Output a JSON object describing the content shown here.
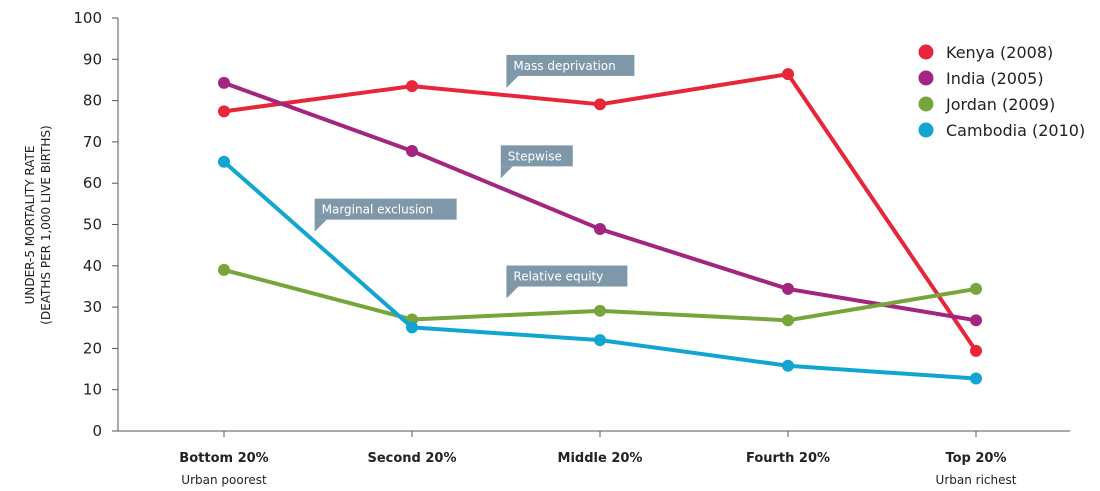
{
  "chart_data": {
    "type": "line",
    "categories": [
      "Bottom 20%",
      "Second 20%",
      "Middle 20%",
      "Fourth 20%",
      "Top 20%"
    ],
    "category_sublabels": [
      "Urban poorest",
      "",
      "",
      "",
      "Urban richest"
    ],
    "ylabel": [
      "UNDER-5 MORTALITY RATE",
      "(DEATHS PER 1,000 LIVE BIRTHS)"
    ],
    "xlabel": "",
    "ylim": [
      0,
      100
    ],
    "yticks": [
      0,
      10,
      20,
      30,
      40,
      50,
      60,
      70,
      80,
      90,
      100
    ],
    "grid": false,
    "legend_position": "top-right",
    "series": [
      {
        "name": "Kenya (2008)",
        "color": "#e8263a",
        "values": [
          77.4,
          83.5,
          79.1,
          86.4,
          19.4
        ]
      },
      {
        "name": "India (2005)",
        "color": "#a3257f",
        "values": [
          84.3,
          67.8,
          48.9,
          34.4,
          26.8
        ]
      },
      {
        "name": "Jordan (2009)",
        "color": "#78a43c",
        "values": [
          39.0,
          27.0,
          29.1,
          26.8,
          34.4
        ]
      },
      {
        "name": "Cambodia (2010)",
        "color": "#13a5d2",
        "values": [
          65.2,
          25.1,
          22.0,
          15.8,
          12.7
        ]
      }
    ],
    "annotations": [
      {
        "text": "Mass deprivation",
        "category_index": 1.55,
        "value": 88.4
      },
      {
        "text": "Stepwise",
        "category_index": 1.52,
        "value": 66.5
      },
      {
        "text": "Marginal exclusion",
        "category_index": 0.53,
        "value": 53.6
      },
      {
        "text": "Relative equity",
        "category_index": 1.55,
        "value": 37.4
      }
    ]
  }
}
